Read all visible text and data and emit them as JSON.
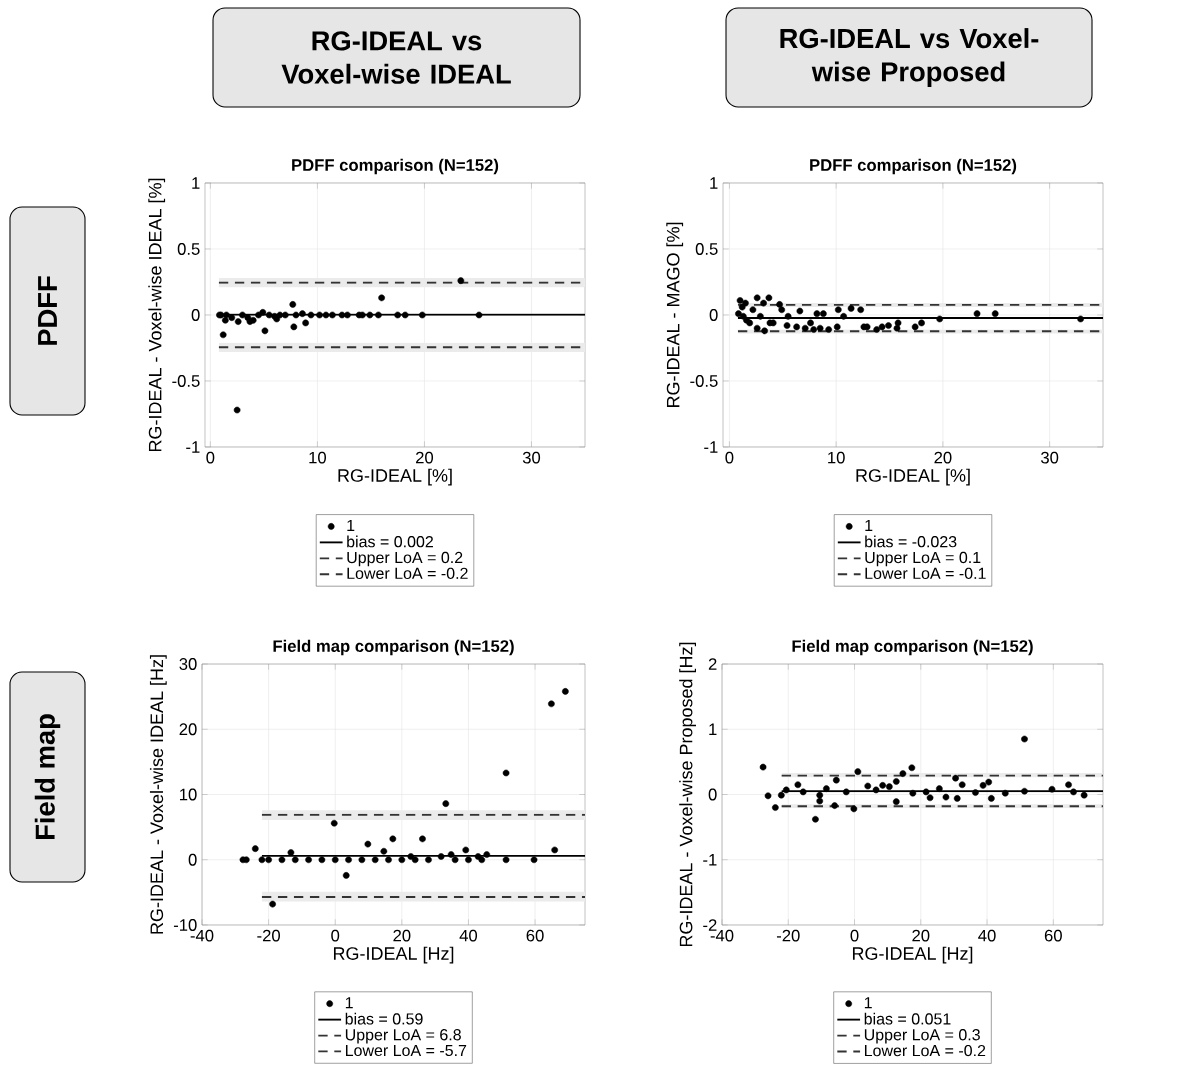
{
  "chart_data": [
    {
      "type": "scatter",
      "title": "PDFF comparison (N=152)",
      "xlabel": "RG-IDEAL [%]",
      "ylabel": "RG-IDEAL - Voxel-wise IDEAL [%]",
      "annotations": [
        "RG-IDEAL vs Voxel-wise IDEAL",
        "PDFF"
      ],
      "xlim": [
        -0.5,
        35
      ],
      "ylim": [
        -1,
        1
      ],
      "xticks": [
        0,
        10,
        20,
        30
      ],
      "yticks": [
        -1,
        -0.5,
        0,
        0.5,
        1
      ],
      "grid": true,
      "legend": "bottom",
      "marker": "circle",
      "series": [
        {
          "name": "1",
          "color": "#000000",
          "x": [
            0.85,
            1.0,
            1.2,
            1.4,
            1.5,
            2.0,
            2.5,
            2.6,
            3.0,
            3.5,
            3.7,
            4.0,
            4.5,
            4.9,
            5.1,
            5.5,
            6.0,
            6.2,
            6.5,
            7.0,
            7.7,
            7.8,
            8.0,
            8.6,
            8.9,
            9.4,
            10.2,
            10.8,
            11.4,
            12.3,
            12.8,
            13.9,
            14.2,
            14.9,
            15.7,
            16.0,
            17.5,
            18.2,
            19.8,
            23.4,
            25.1
          ],
          "values": [
            0,
            0,
            -0.15,
            -0.04,
            0,
            -0.02,
            -0.72,
            -0.05,
            0,
            -0.02,
            -0.05,
            -0.04,
            0,
            0.02,
            -0.12,
            0,
            -0.01,
            -0.03,
            0,
            0,
            0.08,
            -0.09,
            0,
            0.01,
            -0.06,
            0,
            0,
            0,
            0,
            0,
            0,
            0,
            0,
            0,
            0,
            0.13,
            0,
            0,
            0,
            0.26,
            0
          ]
        },
        {
          "name": "bias = 0.002",
          "type": "line",
          "line_style": "solid",
          "marker": "none",
          "color": "#000000",
          "x": [
            0.8,
            35
          ],
          "values": [
            0.002,
            0.002
          ]
        },
        {
          "name": "Upper LoA = 0.2",
          "type": "line",
          "line_style": "dashed",
          "marker": "none",
          "color": "#333333",
          "x": [
            0.8,
            35
          ],
          "values": [
            0.244,
            0.244
          ],
          "lower": [
            0.21,
            0.21
          ],
          "upper": [
            0.28,
            0.28
          ]
        },
        {
          "name": "Lower LoA = -0.2",
          "type": "line",
          "line_style": "dashed",
          "marker": "none",
          "color": "#333333",
          "x": [
            0.8,
            35
          ],
          "values": [
            -0.244,
            -0.244
          ],
          "lower": [
            -0.28,
            -0.28
          ],
          "upper": [
            -0.21,
            -0.21
          ]
        }
      ]
    },
    {
      "type": "scatter",
      "title": "PDFF comparison (N=152)",
      "xlabel": "RG-IDEAL [%]",
      "ylabel": "RG-IDEAL - MAGO [%]",
      "annotations": [
        "RG-IDEAL vs Voxel-wise Proposed"
      ],
      "xlim": [
        -0.6,
        35
      ],
      "ylim": [
        -1,
        1
      ],
      "xticks": [
        0,
        10,
        20,
        30
      ],
      "yticks": [
        -1,
        -0.5,
        0,
        0.5,
        1
      ],
      "grid": true,
      "legend": "bottom",
      "marker": "circle",
      "series": [
        {
          "name": "1",
          "color": "#000000",
          "x": [
            0.85,
            1.0,
            1.2,
            1.3,
            1.5,
            1.6,
            1.9,
            2.2,
            2.6,
            2.6,
            2.9,
            3.2,
            3.3,
            3.7,
            3.8,
            4.1,
            4.7,
            4.9,
            5.4,
            5.5,
            6.3,
            6.6,
            7.1,
            7.6,
            7.9,
            8.2,
            8.5,
            8.8,
            9.3,
            10.1,
            10.2,
            10.7,
            11.4,
            12.3,
            12.6,
            12.9,
            13.8,
            14.3,
            14.9,
            15.7,
            15.8,
            17.4,
            18.0,
            19.7,
            23.2,
            24.9,
            32.9
          ],
          "values": [
            0.01,
            0.11,
            0.06,
            -0.01,
            0.09,
            -0.04,
            -0.06,
            0.04,
            0.13,
            -0.1,
            -0.01,
            0.09,
            -0.12,
            0.13,
            -0.06,
            -0.06,
            0.08,
            0.04,
            -0.08,
            -0.01,
            -0.09,
            0.03,
            -0.1,
            -0.06,
            -0.11,
            0.01,
            -0.1,
            0.01,
            -0.11,
            -0.09,
            0.04,
            -0.01,
            0.05,
            0.04,
            -0.09,
            -0.09,
            -0.11,
            -0.09,
            -0.08,
            -0.1,
            -0.06,
            -0.09,
            -0.06,
            -0.03,
            0.01,
            0.01,
            -0.03
          ]
        },
        {
          "name": "bias = -0.023",
          "type": "line",
          "line_style": "solid",
          "marker": "none",
          "color": "#000000",
          "x": [
            0.8,
            35
          ],
          "values": [
            -0.023,
            -0.023
          ]
        },
        {
          "name": "Upper LoA = 0.1",
          "type": "line",
          "line_style": "dashed",
          "marker": "none",
          "color": "#333333",
          "x": [
            0.8,
            35
          ],
          "values": [
            0.077,
            0.077
          ],
          "lower": [
            0.06,
            0.06
          ],
          "upper": [
            0.09,
            0.09
          ]
        },
        {
          "name": "Lower LoA = -0.1",
          "type": "line",
          "line_style": "dashed",
          "marker": "none",
          "color": "#333333",
          "x": [
            0.8,
            35
          ],
          "values": [
            -0.123,
            -0.123
          ],
          "lower": [
            -0.14,
            -0.14
          ],
          "upper": [
            -0.11,
            -0.11
          ]
        }
      ]
    },
    {
      "type": "scatter",
      "title": "Field map comparison (N=152)",
      "xlabel": "RG-IDEAL [Hz]",
      "ylabel": "RG-IDEAL - Voxel-wise IDEAL [Hz]",
      "annotations": [
        "Field map"
      ],
      "xlim": [
        -40,
        75
      ],
      "ylim": [
        -10,
        30
      ],
      "xticks": [
        -40,
        -20,
        0,
        20,
        40,
        60
      ],
      "yticks": [
        -10,
        0,
        10,
        20,
        30
      ],
      "grid": true,
      "legend": "bottom",
      "marker": "circle",
      "series": [
        {
          "name": "1",
          "color": "#000000",
          "x": [
            -27.7,
            -26.7,
            -24,
            -22,
            -20,
            -18.8,
            -16,
            -13.3,
            -12,
            -8,
            -4,
            -0.3,
            0,
            3.3,
            4,
            8,
            9.8,
            12,
            14.6,
            16,
            17.3,
            20,
            22.7,
            24,
            26.2,
            28,
            31.8,
            33.2,
            34.8,
            36,
            39.2,
            40,
            42.9,
            44,
            45.5,
            51.3,
            51.3,
            59.7,
            64.9,
            65.9,
            69.1
          ],
          "values": [
            0,
            0,
            1.7,
            0,
            0,
            -6.8,
            0,
            1.1,
            0,
            0,
            0,
            5.6,
            0,
            -2.4,
            0,
            0,
            2.4,
            0,
            1.3,
            0,
            3.2,
            0,
            0.5,
            0,
            3.2,
            0,
            0.5,
            8.6,
            0.8,
            0,
            1.5,
            0,
            0.5,
            0,
            0.8,
            13.3,
            0,
            0,
            23.9,
            1.5,
            25.8
          ]
        },
        {
          "name": "bias = 0.59",
          "type": "line",
          "line_style": "solid",
          "marker": "none",
          "color": "#000000",
          "x": [
            -22,
            75
          ],
          "values": [
            0.6,
            0.6
          ]
        },
        {
          "name": "Upper LoA = 6.8",
          "type": "line",
          "line_style": "dashed",
          "marker": "none",
          "color": "#333333",
          "x": [
            -22,
            75
          ],
          "values": [
            6.9,
            6.9
          ],
          "lower": [
            6.1,
            6.1
          ],
          "upper": [
            7.6,
            7.6
          ]
        },
        {
          "name": "Lower LoA = -5.7",
          "type": "line",
          "line_style": "dashed",
          "marker": "none",
          "color": "#333333",
          "x": [
            -22,
            75
          ],
          "values": [
            -5.7,
            -5.7
          ],
          "lower": [
            -6.4,
            -6.4
          ],
          "upper": [
            -4.9,
            -4.9
          ]
        }
      ]
    },
    {
      "type": "scatter",
      "title": "Field map comparison (N=152)",
      "xlabel": "RG-IDEAL [Hz]",
      "ylabel": "RG-IDEAL - Voxel-wise Proposed [Hz]",
      "xlim": [
        -40,
        75
      ],
      "ylim": [
        -2,
        2
      ],
      "xticks": [
        -40,
        -20,
        0,
        20,
        40,
        60
      ],
      "yticks": [
        -2,
        -1,
        0,
        1,
        2
      ],
      "grid": true,
      "legend": "bottom",
      "marker": "circle",
      "series": [
        {
          "name": "1",
          "color": "#000000",
          "x": [
            -27.6,
            -26.1,
            -23.9,
            -22.1,
            -20.6,
            -17.1,
            -15.5,
            -11.8,
            -10.5,
            -10.5,
            -8.5,
            -6,
            -5.5,
            -2.5,
            -0.2,
            1,
            4,
            6.5,
            8.5,
            10.5,
            12.6,
            12.6,
            14.6,
            17.3,
            17.6,
            21.6,
            22.8,
            25.6,
            27.6,
            30.5,
            31,
            32.5,
            36.5,
            38.8,
            40.5,
            41.3,
            45.5,
            51.3,
            51.3,
            59.6,
            64.6,
            66.1,
            69.3
          ],
          "values": [
            0.42,
            -0.02,
            -0.2,
            -0.01,
            0.07,
            0.15,
            0.04,
            -0.38,
            -0.1,
            -0.01,
            0.09,
            -0.17,
            0.22,
            0.04,
            -0.22,
            0.35,
            0.13,
            0.07,
            0.14,
            0.12,
            -0.11,
            0.2,
            0.32,
            0.41,
            0.02,
            0.04,
            -0.05,
            0.09,
            -0.04,
            0.25,
            -0.06,
            0.15,
            0.03,
            0.14,
            0.19,
            -0.06,
            0.02,
            0.85,
            0.05,
            0.08,
            0.15,
            0.04,
            -0.01
          ]
        },
        {
          "name": "bias = 0.051",
          "type": "line",
          "line_style": "solid",
          "marker": "none",
          "color": "#000000",
          "x": [
            -22,
            75
          ],
          "values": [
            0.05,
            0.05
          ]
        },
        {
          "name": "Upper LoA = 0.3",
          "type": "line",
          "line_style": "dashed",
          "marker": "none",
          "color": "#333333",
          "x": [
            -22,
            75
          ],
          "values": [
            0.29,
            0.29
          ],
          "lower": [
            0.26,
            0.26
          ],
          "upper": [
            0.33,
            0.33
          ]
        },
        {
          "name": "Lower LoA = -0.2",
          "type": "line",
          "line_style": "dashed",
          "marker": "none",
          "color": "#333333",
          "x": [
            -22,
            75
          ],
          "values": [
            -0.18,
            -0.18
          ],
          "lower": [
            -0.21,
            -0.21
          ],
          "upper": [
            -0.15,
            -0.15
          ]
        }
      ]
    }
  ]
}
